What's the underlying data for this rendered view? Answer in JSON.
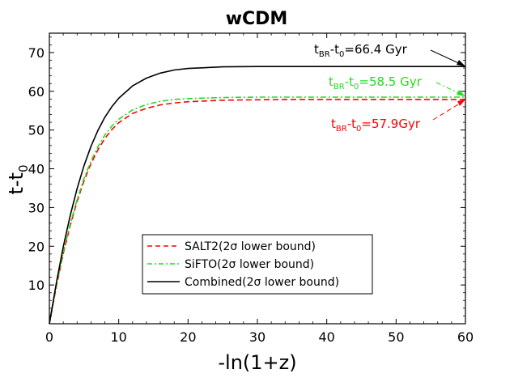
{
  "chart_data": {
    "type": "line",
    "title": "wCDM",
    "xlabel": "-ln(1+z)",
    "ylabel_main": "t-t",
    "ylabel_sub": "0",
    "xlim": [
      0,
      60
    ],
    "ylim": [
      0,
      75
    ],
    "x_ticks": [
      0,
      10,
      20,
      30,
      40,
      50,
      60
    ],
    "y_ticks": [
      10,
      20,
      30,
      40,
      50,
      60,
      70
    ],
    "grid": false,
    "legend_position": "bottom-center",
    "series": [
      {
        "name": "SALT2(2σ lower bound)",
        "color": "#ff0000",
        "style": "dashed",
        "x": [
          0,
          1,
          2,
          3,
          4,
          5,
          6,
          7,
          8,
          9,
          10,
          12,
          14,
          16,
          18,
          20,
          25,
          30,
          35,
          40,
          45,
          50,
          55,
          60
        ],
        "y": [
          0,
          9.6,
          18.0,
          25.3,
          31.6,
          36.9,
          41.3,
          44.9,
          47.8,
          50.1,
          51.9,
          54.3,
          55.6,
          56.5,
          57.0,
          57.3,
          57.7,
          57.8,
          57.9,
          57.9,
          57.9,
          57.9,
          57.9,
          57.9
        ]
      },
      {
        "name": "SiFTO(2σ lower bound)",
        "color": "#22dd22",
        "style": "dashdot",
        "x": [
          0,
          1,
          2,
          3,
          4,
          5,
          6,
          7,
          8,
          9,
          10,
          12,
          14,
          16,
          18,
          20,
          25,
          30,
          35,
          40,
          45,
          50,
          55,
          60
        ],
        "y": [
          0,
          9.8,
          18.3,
          25.7,
          32.1,
          37.5,
          42.0,
          45.7,
          48.7,
          51.0,
          52.8,
          55.2,
          56.6,
          57.4,
          57.9,
          58.1,
          58.4,
          58.5,
          58.5,
          58.5,
          58.5,
          58.5,
          58.5,
          58.5
        ]
      },
      {
        "name": "Combined(2σ lower bound)",
        "color": "#000000",
        "style": "solid",
        "x": [
          0,
          1,
          2,
          3,
          4,
          5,
          6,
          7,
          8,
          9,
          10,
          12,
          14,
          16,
          18,
          20,
          25,
          30,
          35,
          40,
          45,
          50,
          55,
          60
        ],
        "y": [
          0,
          10.5,
          19.8,
          27.9,
          34.9,
          40.8,
          45.8,
          49.9,
          53.3,
          56.0,
          58.2,
          61.4,
          63.4,
          64.7,
          65.5,
          65.9,
          66.3,
          66.4,
          66.4,
          66.4,
          66.4,
          66.4,
          66.4,
          66.4
        ]
      }
    ],
    "annotations": [
      {
        "prefix": "t",
        "sub1": "BR",
        "mid": "-t",
        "sub2": "0",
        "value": "=66.4 Gyr",
        "color": "#000000"
      },
      {
        "prefix": "t",
        "sub1": "BR",
        "mid": "-t",
        "sub2": "0",
        "value": "=58.5 Gyr",
        "color": "#22dd22"
      },
      {
        "prefix": "t",
        "sub1": "BR",
        "mid": "-t",
        "sub2": "0",
        "value": "=57.9Gyr",
        "color": "#ff0000"
      }
    ]
  }
}
